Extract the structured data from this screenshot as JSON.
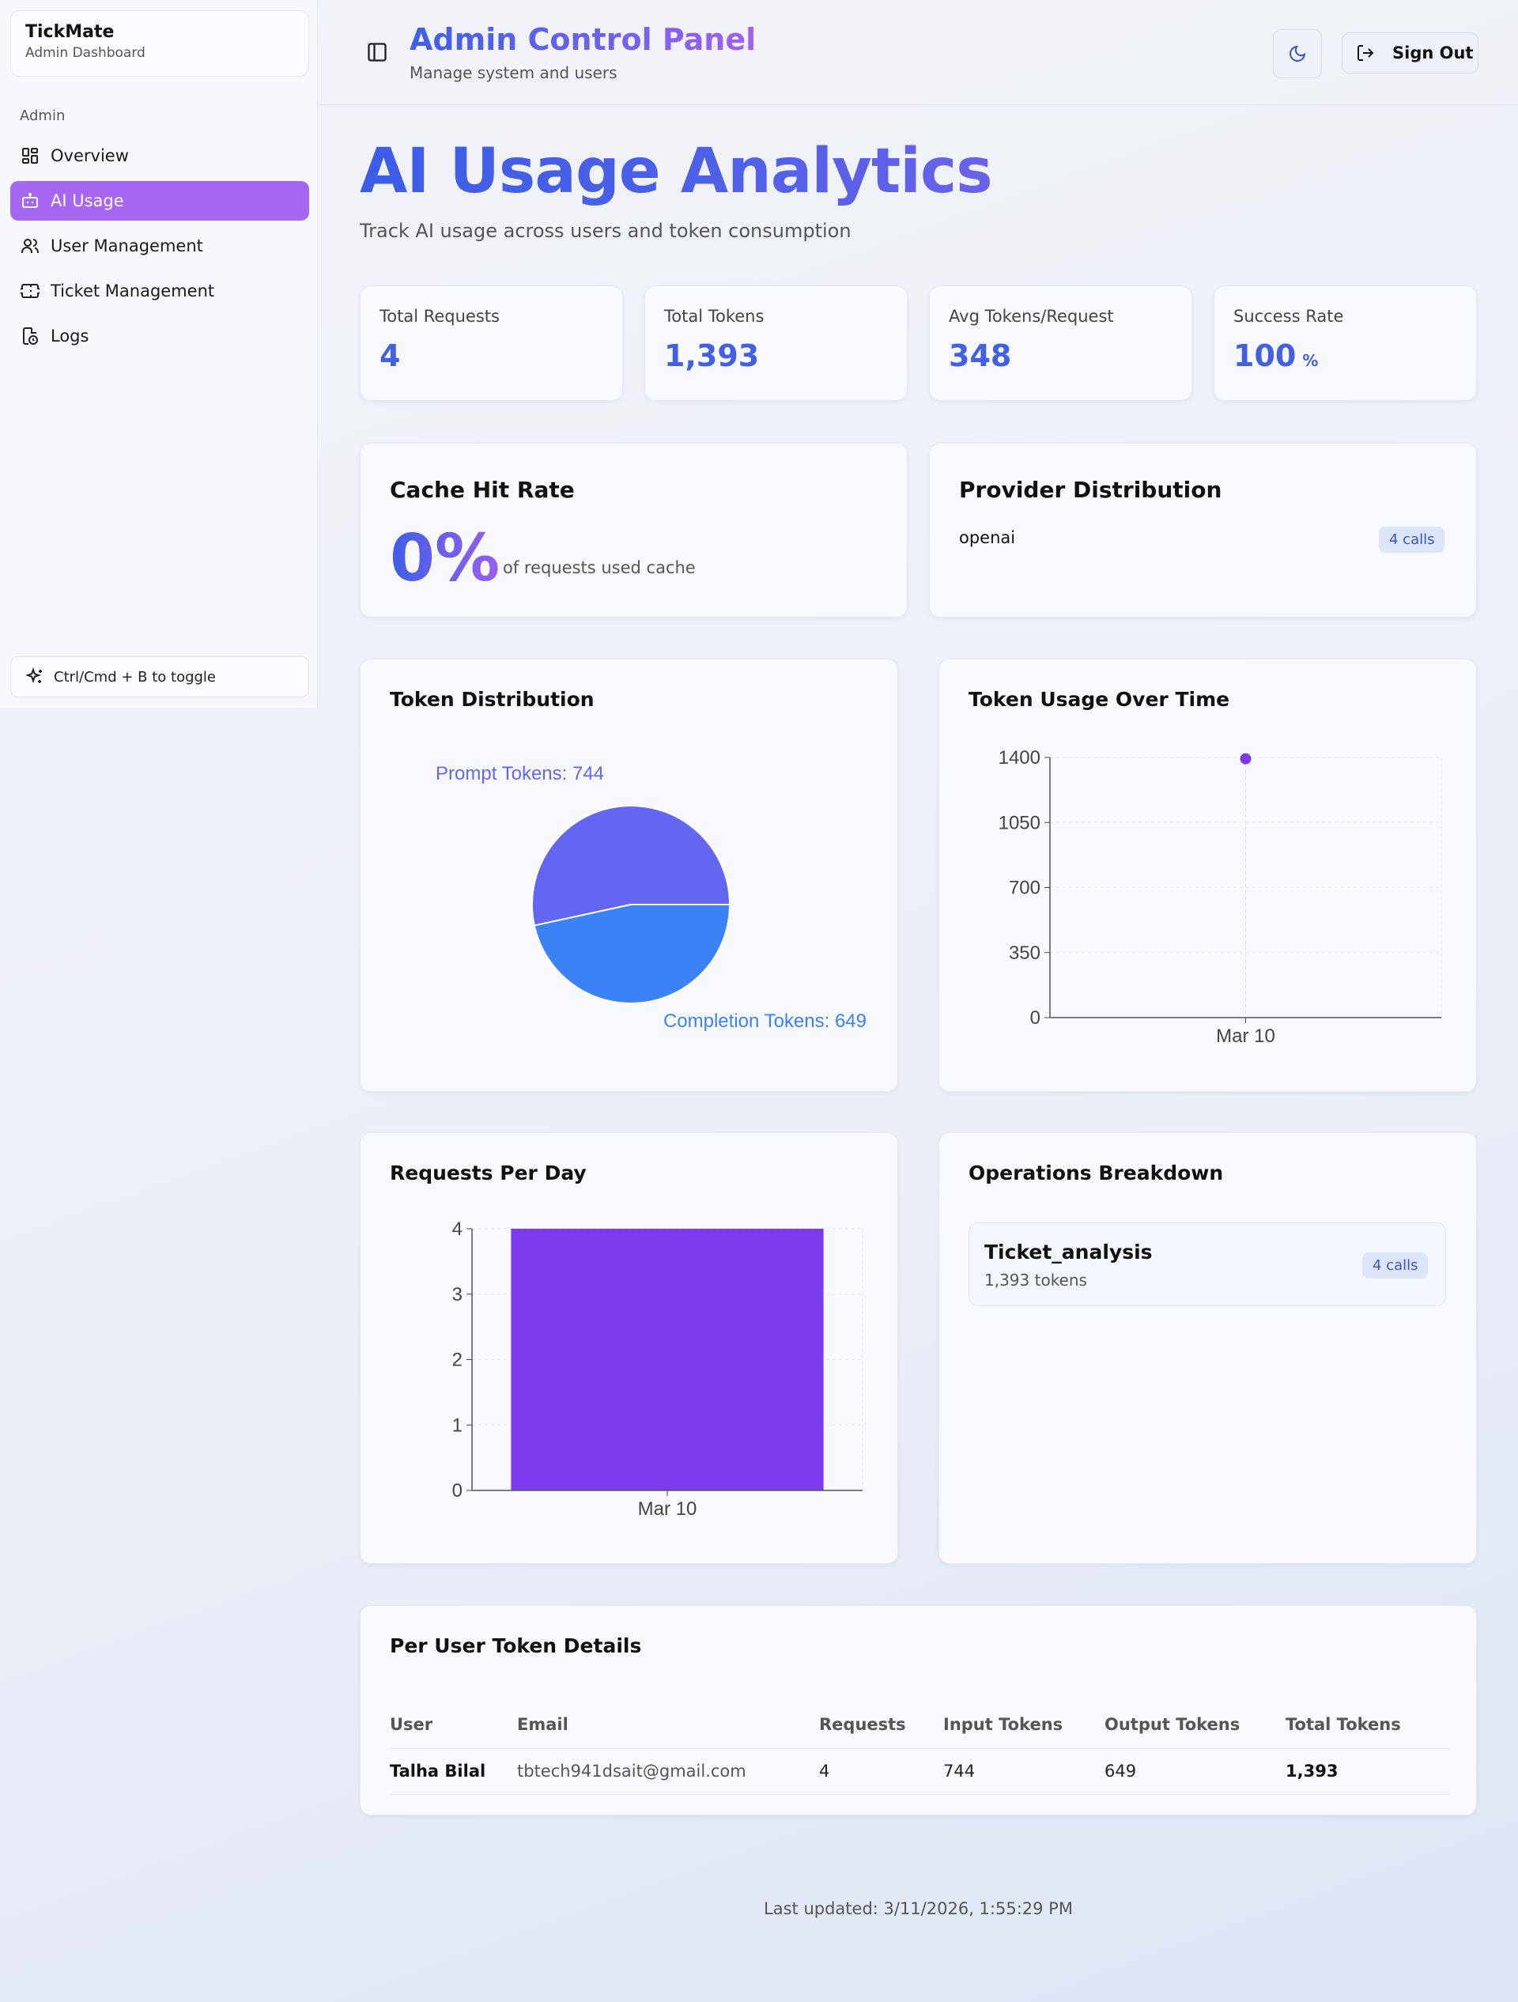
{
  "sidebar": {
    "brand_name": "TickMate",
    "brand_sub": "Admin Dashboard",
    "section_label": "Admin",
    "items": [
      {
        "label": "Overview",
        "icon": "grid-icon",
        "active": false
      },
      {
        "label": "AI Usage",
        "icon": "bot-icon",
        "active": true
      },
      {
        "label": "User Management",
        "icon": "users-icon",
        "active": false
      },
      {
        "label": "Ticket Management",
        "icon": "ticket-icon",
        "active": false
      },
      {
        "label": "Logs",
        "icon": "logs-icon",
        "active": false
      }
    ],
    "toggle_hint": "Ctrl/Cmd + B to toggle"
  },
  "header": {
    "title": "Admin Control Panel",
    "subtitle": "Manage system and users",
    "signout_label": "Sign Out"
  },
  "page": {
    "title": "AI Usage Analytics",
    "subtitle": "Track AI usage across users and token consumption"
  },
  "stats": [
    {
      "label": "Total Requests",
      "value": "4",
      "unit": ""
    },
    {
      "label": "Total Tokens",
      "value": "1,393",
      "unit": ""
    },
    {
      "label": "Avg Tokens/Request",
      "value": "348",
      "unit": ""
    },
    {
      "label": "Success Rate",
      "value": "100",
      "unit": "%"
    }
  ],
  "cache": {
    "title": "Cache Hit Rate",
    "value": "0%",
    "note": "of requests used cache"
  },
  "provider": {
    "title": "Provider Distribution",
    "name": "openai",
    "badge": "4 calls"
  },
  "charts": {
    "token_distribution_title": "Token Distribution",
    "token_time_title": "Token Usage Over Time",
    "requests_title": "Requests Per Day",
    "prompt_label": "Prompt Tokens: 744",
    "completion_label": "Completion Tokens: 649"
  },
  "chart_data": [
    {
      "type": "pie",
      "title": "Token Distribution",
      "categories": [
        "Prompt Tokens",
        "Completion Tokens"
      ],
      "values": [
        744,
        649
      ],
      "colors": [
        "#6366f1",
        "#3b82f6"
      ]
    },
    {
      "type": "line",
      "title": "Token Usage Over Time",
      "x": [
        "Mar 10"
      ],
      "y": [
        1393
      ],
      "ylim": [
        0,
        1400
      ],
      "yticks": [
        0,
        350,
        700,
        1050,
        1400
      ],
      "grid": true,
      "color": "#7c3aed"
    },
    {
      "type": "bar",
      "title": "Requests Per Day",
      "categories": [
        "Mar 10"
      ],
      "values": [
        4
      ],
      "ylim": [
        0,
        4
      ],
      "yticks": [
        0,
        1,
        2,
        3,
        4
      ],
      "grid": true,
      "color": "#7c3aed"
    }
  ],
  "operations": {
    "title": "Operations Breakdown",
    "items": [
      {
        "name": "Ticket_analysis",
        "tokens": "1,393 tokens",
        "badge": "4 calls"
      }
    ]
  },
  "table": {
    "title": "Per User Token Details",
    "headers": [
      "User",
      "Email",
      "Requests",
      "Input Tokens",
      "Output Tokens",
      "Total Tokens"
    ],
    "rows": [
      {
        "user": "Talha Bilal",
        "email": "tbtech941dsait@gmail.com",
        "requests": "4",
        "input": "744",
        "output": "649",
        "total": "1,393"
      }
    ]
  },
  "footer": "Last updated: 3/11/2026, 1:55:29 PM"
}
